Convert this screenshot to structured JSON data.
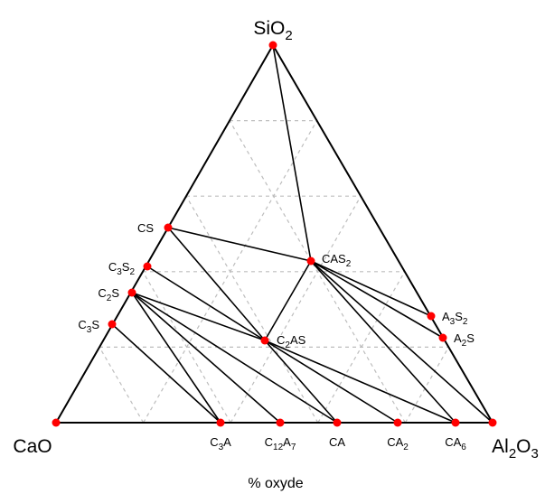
{
  "colors": {
    "point": "#ff0000",
    "line": "#000000",
    "grid": "#bdbdbd"
  },
  "caption": "% oxyde",
  "labels": {
    "SiO2": {
      "base": "SiO",
      "sub": "2"
    },
    "CaO": {
      "base": "CaO"
    },
    "Al2O3": {
      "parts": [
        {
          "t": "Al"
        },
        {
          "t": "2",
          "sub": true
        },
        {
          "t": "O"
        },
        {
          "t": "3",
          "sub": true
        }
      ]
    },
    "CS": {
      "base": "CS"
    },
    "C3S2": {
      "parts": [
        {
          "t": "C"
        },
        {
          "t": "3",
          "sub": true
        },
        {
          "t": "S"
        },
        {
          "t": "2",
          "sub": true
        }
      ]
    },
    "C2S": {
      "parts": [
        {
          "t": "C"
        },
        {
          "t": "2",
          "sub": true
        },
        {
          "t": "S"
        }
      ]
    },
    "C3S": {
      "parts": [
        {
          "t": "C"
        },
        {
          "t": "3",
          "sub": true
        },
        {
          "t": "S"
        }
      ]
    },
    "CAS2": {
      "parts": [
        {
          "t": "CAS"
        },
        {
          "t": "2",
          "sub": true
        }
      ]
    },
    "C2AS": {
      "parts": [
        {
          "t": "C"
        },
        {
          "t": "2",
          "sub": true
        },
        {
          "t": "AS"
        }
      ]
    },
    "A3S2": {
      "parts": [
        {
          "t": "A"
        },
        {
          "t": "3",
          "sub": true
        },
        {
          "t": "S"
        },
        {
          "t": "2",
          "sub": true
        }
      ]
    },
    "A2S": {
      "parts": [
        {
          "t": "A"
        },
        {
          "t": "2",
          "sub": true
        },
        {
          "t": "S"
        }
      ]
    },
    "C3A": {
      "parts": [
        {
          "t": "C"
        },
        {
          "t": "3",
          "sub": true
        },
        {
          "t": "A"
        }
      ]
    },
    "C12A7": {
      "parts": [
        {
          "t": "C"
        },
        {
          "t": "12",
          "sub": true
        },
        {
          "t": "A"
        },
        {
          "t": "7",
          "sub": true
        }
      ]
    },
    "CA": {
      "base": "CA"
    },
    "CA2": {
      "parts": [
        {
          "t": "CA"
        },
        {
          "t": "2",
          "sub": true
        }
      ]
    },
    "CA6": {
      "parts": [
        {
          "t": "CA"
        },
        {
          "t": "6",
          "sub": true
        }
      ]
    }
  },
  "phases": [
    "SiO2",
    "CaO",
    "Al2O3",
    "CS",
    "C3S2",
    "C2S",
    "C3S",
    "CAS2",
    "C2AS",
    "A3S2",
    "A2S",
    "C3A",
    "C12A7",
    "CA",
    "CA2",
    "CA6"
  ],
  "tie_lines": [
    [
      "SiO2",
      "CAS2"
    ],
    [
      "CS",
      "CAS2"
    ],
    [
      "CS",
      "C2AS"
    ],
    [
      "CAS2",
      "C2AS"
    ],
    [
      "CAS2",
      "A3S2"
    ],
    [
      "CAS2",
      "A2S"
    ],
    [
      "CAS2",
      "CA6"
    ],
    [
      "CAS2",
      "Al2O3"
    ],
    [
      "C3S2",
      "C2AS"
    ],
    [
      "C2S",
      "C2AS"
    ],
    [
      "C2S",
      "C3A"
    ],
    [
      "C2S",
      "C12A7"
    ],
    [
      "C2S",
      "CA"
    ],
    [
      "C3S",
      "C3A"
    ],
    [
      "C2AS",
      "CA"
    ],
    [
      "C2AS",
      "CA2"
    ],
    [
      "C2AS",
      "CA6"
    ]
  ]
}
